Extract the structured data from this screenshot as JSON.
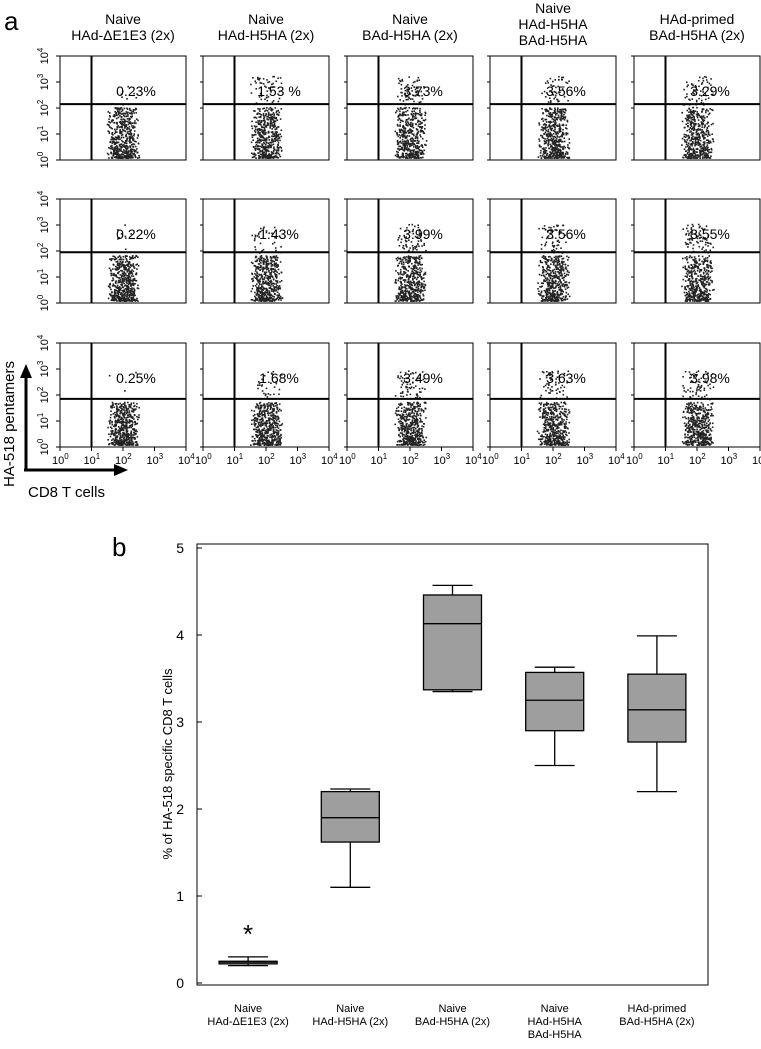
{
  "chart_data": [
    {
      "panel": "a",
      "type": "scatter",
      "columns": [
        {
          "title": [
            "Naive",
            "HAd-ΔE1E3 (2x)"
          ]
        },
        {
          "title": [
            "Naive",
            "HAd-H5HA (2x)"
          ]
        },
        {
          "title": [
            "Naive",
            "BAd-H5HA (2x)"
          ]
        },
        {
          "title": [
            "Naive",
            "HAd-H5HA",
            "BAd-H5HA"
          ]
        },
        {
          "title": [
            "HAd-primed",
            "BAd-H5HA (2x)"
          ]
        }
      ],
      "rows": [
        [
          "0.23%",
          "1.53 %",
          "3.73%",
          "3.56%",
          "3.29%"
        ],
        [
          "0.22%",
          "1.43%",
          "3.99%",
          "3.56%",
          "3.55%"
        ],
        [
          "0.25%",
          "1.68%",
          "3.49%",
          "3.63%",
          "3.98%"
        ]
      ],
      "xlabel": "CD8 T cells",
      "ylabel": "HA-518 pentamers",
      "x_ticks": [
        "0",
        "1",
        "2",
        "3",
        "4"
      ],
      "y_ticks": [
        "0",
        "1",
        "2",
        "3",
        "4"
      ],
      "tick_base": "10",
      "xlim": [
        0,
        4
      ],
      "ylim": [
        0,
        4
      ],
      "xscale": "log",
      "yscale": "log",
      "gate_x": 1.0,
      "gate_y_by_row": [
        2.15,
        1.95,
        1.85
      ]
    },
    {
      "panel": "b",
      "type": "box",
      "categories": [
        [
          "Naive",
          "HAd-ΔE1E3 (2x)"
        ],
        [
          "Naive",
          "HAd-H5HA (2x)"
        ],
        [
          "Naive",
          "BAd-H5HA (2x)"
        ],
        [
          "Naive",
          "HAd-H5HA",
          "BAd-H5HA"
        ],
        [
          "HAd-primed",
          "BAd-H5HA (2x)"
        ]
      ],
      "boxes": [
        {
          "min": 0.2,
          "q1": 0.22,
          "median": 0.24,
          "q3": 0.25,
          "max": 0.3
        },
        {
          "min": 1.1,
          "q1": 1.62,
          "median": 1.9,
          "q3": 2.2,
          "max": 2.23
        },
        {
          "min": 3.35,
          "q1": 3.37,
          "median": 4.13,
          "q3": 4.46,
          "max": 4.57
        },
        {
          "min": 2.5,
          "q1": 2.9,
          "median": 3.25,
          "q3": 3.57,
          "max": 3.63
        },
        {
          "min": 2.2,
          "q1": 2.77,
          "median": 3.14,
          "q3": 3.55,
          "max": 3.99
        }
      ],
      "annotations": [
        {
          "category_index": 0,
          "text": "*"
        }
      ],
      "ylabel": "% of HA-518 specific CD8 T cells",
      "xlabel": "",
      "ylim": [
        0,
        5
      ],
      "yticks": [
        "0",
        "1",
        "2",
        "3",
        "4",
        "5"
      ],
      "box_color": "#9e9e9e",
      "grid": false
    }
  ]
}
